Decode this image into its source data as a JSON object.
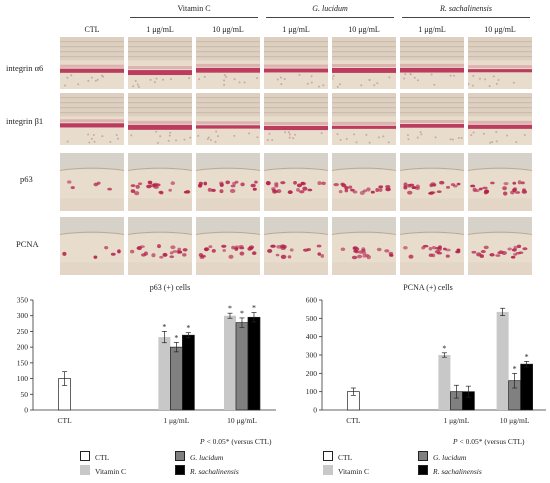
{
  "figure": {
    "column_headers": [
      "CTL",
      "1 μg/mL",
      "10 μg/mL",
      "1 μg/mL",
      "10 μg/mL",
      "1 μg/mL",
      "10 μg/mL"
    ],
    "group_headers": [
      {
        "label": "Vitamin C",
        "italic": false
      },
      {
        "label": "G. lucidum",
        "italic": true
      },
      {
        "label": "R. sachalinensis",
        "italic": true
      }
    ],
    "row_labels": [
      "integrin α6",
      "integrin β1",
      "p63",
      "PCNA"
    ],
    "colors": {
      "tissue_bg": "#e8dccd",
      "stain": "#b3204a",
      "ctl_fill": "#ffffff",
      "vitc_fill": "#c8c8c8",
      "glu_fill": "#808080",
      "rsa_fill": "#000000"
    }
  },
  "chart_data": [
    {
      "type": "bar",
      "title": "p63 (+) cells",
      "categories": [
        "CTL",
        "1 μg/mL",
        "10 μg/mL"
      ],
      "series": [
        {
          "name": "CTL",
          "values": [
            100,
            null,
            null
          ],
          "errors": [
            22,
            null,
            null
          ]
        },
        {
          "name": "Vitamin C",
          "values": [
            null,
            232,
            300
          ],
          "errors": [
            null,
            18,
            8
          ]
        },
        {
          "name": "G. lucidum",
          "values": [
            null,
            200,
            278
          ],
          "errors": [
            null,
            15,
            15
          ]
        },
        {
          "name": "R. sachalinensis",
          "values": [
            null,
            238,
            295
          ],
          "errors": [
            null,
            8,
            15
          ]
        }
      ],
      "significant": [
        [
          null,
          null,
          null
        ],
        [
          null,
          true,
          true
        ],
        [
          null,
          true,
          true
        ],
        [
          null,
          true,
          true
        ]
      ],
      "ylim": [
        0,
        350
      ],
      "yticks": [
        0,
        50,
        100,
        150,
        200,
        250,
        300,
        350
      ],
      "note": "P < 0.05* (versus CTL)"
    },
    {
      "type": "bar",
      "title": "PCNA (+) cells",
      "categories": [
        "CTL",
        "1 μg/mL",
        "10 μg/mL"
      ],
      "series": [
        {
          "name": "CTL",
          "values": [
            100,
            null,
            null
          ],
          "errors": [
            20,
            null,
            null
          ]
        },
        {
          "name": "Vitamin C",
          "values": [
            null,
            300,
            535
          ],
          "errors": [
            null,
            12,
            20
          ]
        },
        {
          "name": "G. lucidum",
          "values": [
            null,
            100,
            160
          ],
          "errors": [
            null,
            35,
            40
          ]
        },
        {
          "name": "R. sachalinensis",
          "values": [
            null,
            100,
            250
          ],
          "errors": [
            null,
            30,
            15
          ]
        }
      ],
      "significant": [
        [
          null,
          null,
          null
        ],
        [
          null,
          true,
          false
        ],
        [
          null,
          false,
          true
        ],
        [
          null,
          false,
          true
        ]
      ],
      "ylim": [
        0,
        600
      ],
      "yticks": [
        0,
        100,
        200,
        300,
        400,
        500,
        600
      ],
      "note": "P < 0.05* (versus CTL)"
    }
  ],
  "legend": [
    {
      "label": "CTL",
      "fill": "#ffffff",
      "italic": false
    },
    {
      "label": "G. lucidum",
      "fill": "#808080",
      "italic": true
    },
    {
      "label": "Vitamin C",
      "fill": "#c8c8c8",
      "italic": false
    },
    {
      "label": "R. sachalinensis",
      "fill": "#000000",
      "italic": true
    }
  ]
}
